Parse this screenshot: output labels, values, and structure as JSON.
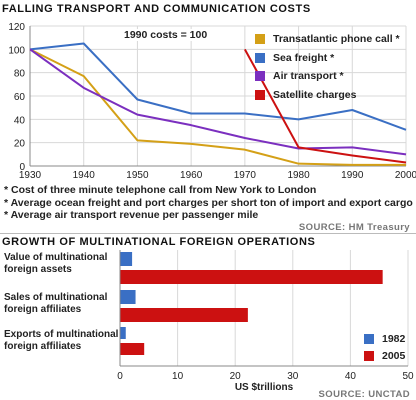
{
  "chart_data": [
    {
      "type": "line",
      "title": "FALLING TRANSPORT AND COMMUNICATION COSTS",
      "annotation": "1990 costs = 100",
      "xlim": [
        1930,
        2000
      ],
      "ylim": [
        0,
        120
      ],
      "x_ticks": [
        1930,
        1940,
        1950,
        1960,
        1970,
        1980,
        1990,
        2000
      ],
      "y_ticks": [
        0,
        20,
        40,
        60,
        80,
        100,
        120
      ],
      "grid": true,
      "legend_position": "top-right",
      "series": [
        {
          "name": "Transatlantic phone call *",
          "color": "#d4a017",
          "x": [
            1930,
            1940,
            1950,
            1960,
            1970,
            1980,
            1990,
            2000
          ],
          "y": [
            100,
            77,
            22,
            19,
            14,
            2,
            1,
            1
          ]
        },
        {
          "name": "Sea freight *",
          "color": "#3a6fc4",
          "x": [
            1930,
            1940,
            1950,
            1960,
            1970,
            1980,
            1990,
            2000
          ],
          "y": [
            100,
            105,
            57,
            45,
            45,
            40,
            48,
            31
          ]
        },
        {
          "name": "Air transport *",
          "color": "#7b2fbf",
          "x": [
            1930,
            1940,
            1950,
            1960,
            1970,
            1980,
            1990,
            2000
          ],
          "y": [
            100,
            67,
            44,
            35,
            24,
            15,
            16,
            10
          ]
        },
        {
          "name": "Satellite charges",
          "color": "#cc1111",
          "x": [
            1970,
            1980,
            1990,
            2000
          ],
          "y": [
            100,
            16,
            9,
            3
          ]
        }
      ],
      "footnotes": [
        "* Cost of three minute telephone call from New York to London",
        "* Average ocean freight and port charges per short ton of import and export cargo",
        "* Average air transport revenue per passenger mile"
      ],
      "source": "SOURCE: HM Treasury"
    },
    {
      "type": "bar",
      "orientation": "horizontal",
      "title": "GROWTH OF MULTINATIONAL FOREIGN OPERATIONS",
      "xlabel": "US $trillions",
      "xlim": [
        0,
        50
      ],
      "x_ticks": [
        0,
        10,
        20,
        30,
        40,
        50
      ],
      "grid": true,
      "legend_position": "bottom-right",
      "categories": [
        "Value of multinational foreign assets",
        "Sales of multinational foreign affiliates",
        "Exports of multinational foreign affiliates"
      ],
      "series": [
        {
          "name": "1982",
          "color": "#3a6fc4",
          "values": [
            2.1,
            2.7,
            1.0
          ]
        },
        {
          "name": "2005",
          "color": "#cc1111",
          "values": [
            45.6,
            22.2,
            4.2
          ]
        }
      ],
      "source": "SOURCE: UNCTAD"
    }
  ]
}
